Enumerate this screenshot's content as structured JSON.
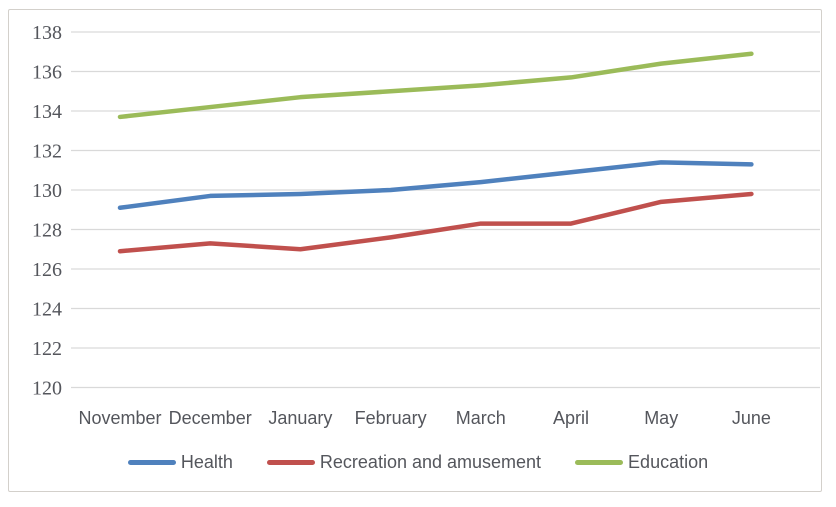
{
  "chart_data": {
    "type": "line",
    "title": "",
    "xlabel": "",
    "ylabel": "",
    "categories": [
      "November",
      "December",
      "January",
      "February",
      "March",
      "April",
      "May",
      "June"
    ],
    "series": [
      {
        "name": "Health",
        "color": "#4F81BD",
        "values": [
          129.1,
          129.7,
          129.8,
          130.0,
          130.4,
          130.9,
          131.4,
          131.3
        ]
      },
      {
        "name": "Recreation and amusement",
        "color": "#C0504D",
        "values": [
          126.9,
          127.3,
          127.0,
          127.6,
          128.3,
          128.3,
          129.4,
          129.8
        ]
      },
      {
        "name": "Education",
        "color": "#9BBB59",
        "values": [
          133.7,
          134.2,
          134.7,
          135.0,
          135.3,
          135.7,
          136.4,
          136.9
        ]
      }
    ],
    "y_ticks": [
      138,
      136,
      134,
      132,
      130,
      128,
      126,
      124,
      122,
      120
    ],
    "ylim": [
      120,
      138
    ],
    "grid": "horizontal-only",
    "legend_position": "bottom"
  },
  "colors": {
    "gridline": "#D9D9D9",
    "axis_text": "#54565C",
    "frame_border": "#D3D0CB",
    "background": "#FFFFFF"
  }
}
